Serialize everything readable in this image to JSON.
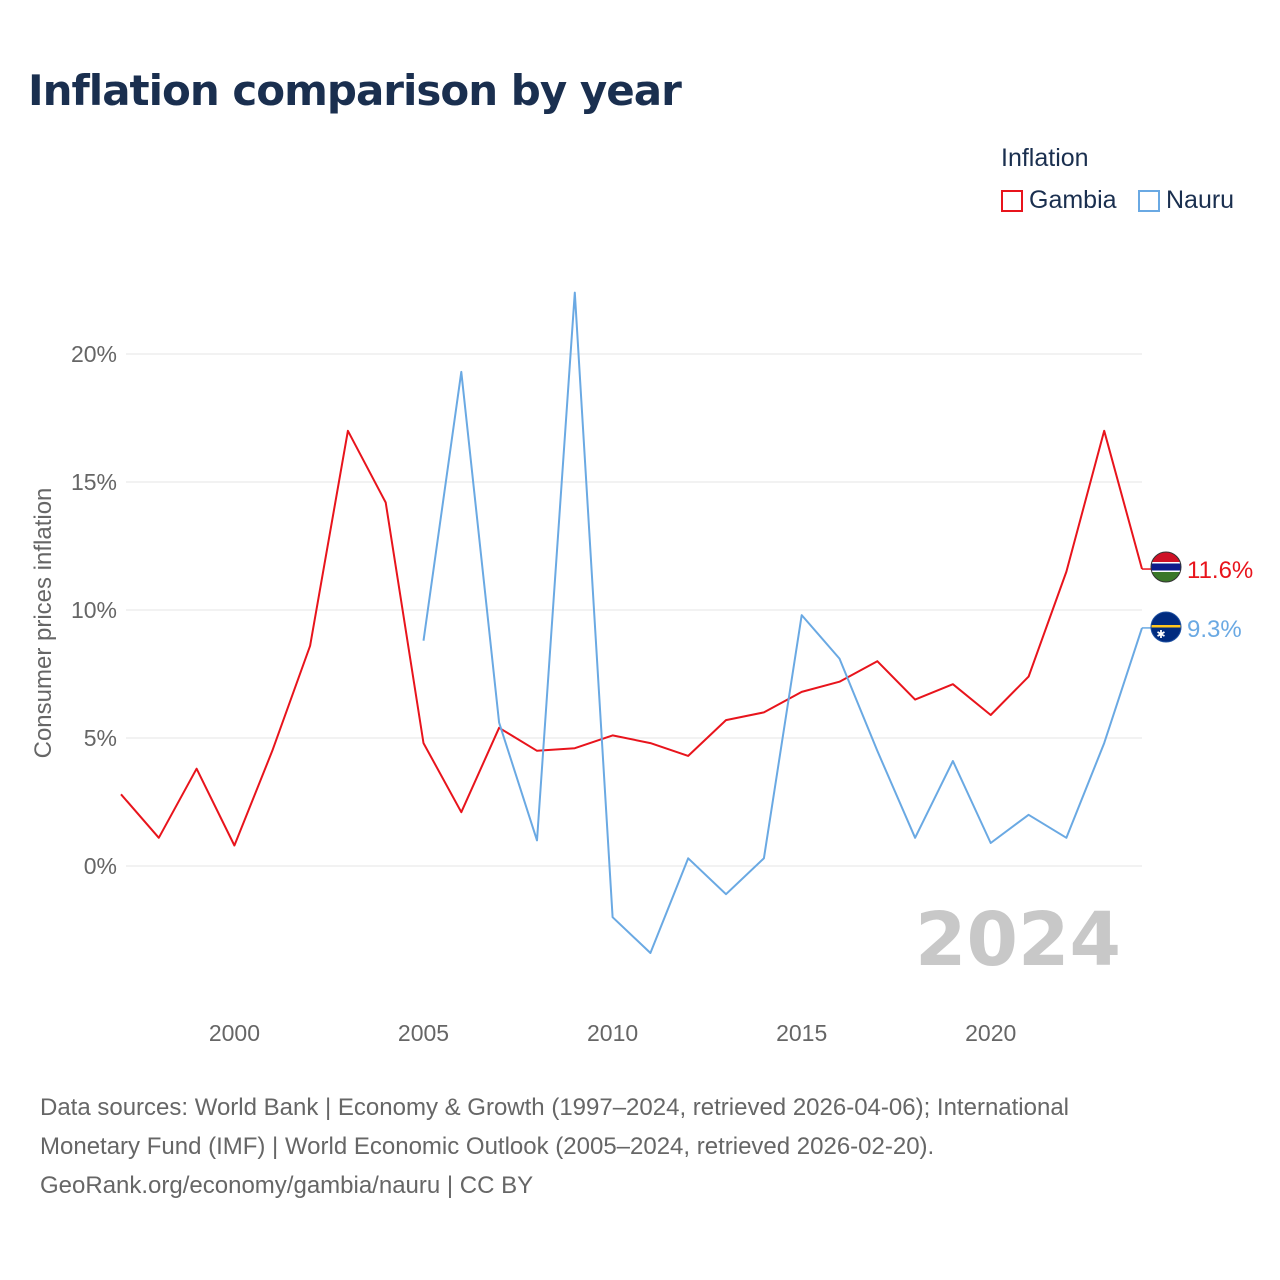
{
  "title": "Inflation comparison by year",
  "legend": {
    "title": "Inflation",
    "items": [
      {
        "label": "Gambia",
        "color": "#e8141c"
      },
      {
        "label": "Nauru",
        "color": "#6aa9e3"
      }
    ]
  },
  "chart_data": {
    "type": "line",
    "title": "Inflation comparison by year",
    "xlabel": "",
    "ylabel": "Consumer prices inflation",
    "xlim": [
      1997,
      2024
    ],
    "ylim": [
      -5,
      23
    ],
    "x_ticks": [
      {
        "value": 2000,
        "label": "2000"
      },
      {
        "value": 2005,
        "label": "2005"
      },
      {
        "value": 2010,
        "label": "2010"
      },
      {
        "value": 2015,
        "label": "2015"
      },
      {
        "value": 2020,
        "label": "2020"
      }
    ],
    "y_ticks": [
      {
        "value": 0,
        "label": "0%"
      },
      {
        "value": 5,
        "label": "5%"
      },
      {
        "value": 10,
        "label": "10%"
      },
      {
        "value": 15,
        "label": "15%"
      },
      {
        "value": 20,
        "label": "20%"
      }
    ],
    "grid": true,
    "year_watermark": "2024",
    "series": [
      {
        "name": "Gambia",
        "color": "#e8141c",
        "end_label": "11.6%",
        "points": [
          [
            1997,
            2.8
          ],
          [
            1998,
            1.1
          ],
          [
            1999,
            3.8
          ],
          [
            2000,
            0.8
          ],
          [
            2001,
            4.5
          ],
          [
            2002,
            8.6
          ],
          [
            2003,
            17.0
          ],
          [
            2004,
            14.2
          ],
          [
            2005,
            4.8
          ],
          [
            2006,
            2.1
          ],
          [
            2007,
            5.4
          ],
          [
            2008,
            4.5
          ],
          [
            2009,
            4.6
          ],
          [
            2010,
            5.1
          ],
          [
            2011,
            4.8
          ],
          [
            2012,
            4.3
          ],
          [
            2013,
            5.7
          ],
          [
            2014,
            6.0
          ],
          [
            2015,
            6.8
          ],
          [
            2016,
            7.2
          ],
          [
            2017,
            8.0
          ],
          [
            2018,
            6.5
          ],
          [
            2019,
            7.1
          ],
          [
            2020,
            5.9
          ],
          [
            2021,
            7.4
          ],
          [
            2022,
            11.5
          ],
          [
            2023,
            17.0
          ],
          [
            2024,
            11.6
          ]
        ]
      },
      {
        "name": "Nauru",
        "color": "#6aa9e3",
        "end_label": "9.3%",
        "points": [
          [
            2005,
            8.8
          ],
          [
            2006,
            19.3
          ],
          [
            2007,
            5.6
          ],
          [
            2008,
            1.0
          ],
          [
            2009,
            22.4
          ],
          [
            2010,
            -2.0
          ],
          [
            2011,
            -3.4
          ],
          [
            2012,
            0.3
          ],
          [
            2013,
            -1.1
          ],
          [
            2014,
            0.3
          ],
          [
            2015,
            9.8
          ],
          [
            2016,
            8.1
          ],
          [
            2017,
            4.5
          ],
          [
            2018,
            1.1
          ],
          [
            2019,
            4.1
          ],
          [
            2020,
            0.9
          ],
          [
            2021,
            2.0
          ],
          [
            2022,
            1.1
          ],
          [
            2023,
            4.8
          ],
          [
            2024,
            9.3
          ]
        ]
      }
    ]
  },
  "footer": {
    "line1": "Data sources: World Bank | Economy & Growth (1997–2024, retrieved 2026-04-06); International",
    "line2": "Monetary Fund (IMF) | World Economic Outlook (2005–2024, retrieved 2026-02-20).",
    "line3": "GeoRank.org/economy/gambia/nauru | CC BY"
  }
}
